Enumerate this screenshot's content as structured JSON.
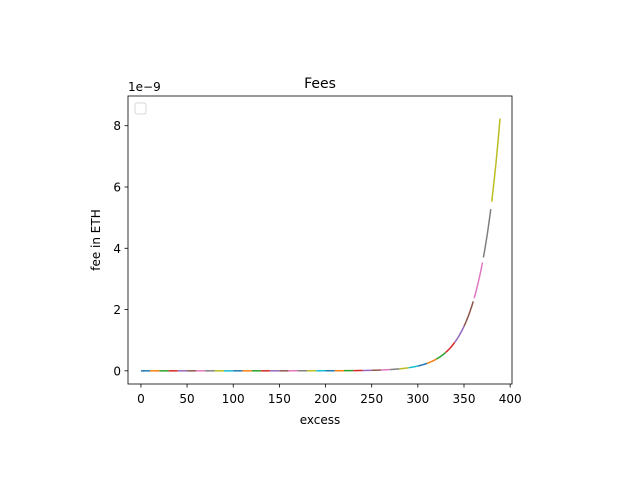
{
  "chart_data": {
    "type": "line",
    "title": "Fees",
    "xlabel": "excess",
    "ylabel": "fee in ETH",
    "y_offset_text": "1e−9",
    "xlim": [
      -14,
      402
    ],
    "ylim": [
      -0.43,
      8.97
    ],
    "x_ticks": [
      0,
      50,
      100,
      150,
      200,
      250,
      300,
      350,
      400
    ],
    "x_tick_labels": [
      "0",
      "50",
      "100",
      "150",
      "200",
      "250",
      "300",
      "350",
      "400"
    ],
    "y_ticks": [
      0,
      2,
      4,
      6,
      8
    ],
    "y_tick_labels": [
      "0",
      "2",
      "4",
      "6",
      "8"
    ],
    "grid": false,
    "legend": {
      "location": "upper-left",
      "entries": []
    },
    "curve": {
      "description_units": "y in units of 1e-9 ETH",
      "form": "y = a * exp(b * x)",
      "a": 2.5e-07,
      "b": 0.0445
    },
    "segments": [
      {
        "x_start": 0,
        "x_end": 10,
        "color": "#1f77b4"
      },
      {
        "x_start": 10,
        "x_end": 20,
        "color": "#ff7f0e"
      },
      {
        "x_start": 20,
        "x_end": 30,
        "color": "#2ca02c"
      },
      {
        "x_start": 30,
        "x_end": 40,
        "color": "#d62728"
      },
      {
        "x_start": 40,
        "x_end": 50,
        "color": "#9467bd"
      },
      {
        "x_start": 50,
        "x_end": 60,
        "color": "#8c564b"
      },
      {
        "x_start": 60,
        "x_end": 70,
        "color": "#e377c2"
      },
      {
        "x_start": 70,
        "x_end": 80,
        "color": "#7f7f7f"
      },
      {
        "x_start": 80,
        "x_end": 90,
        "color": "#bcbd22"
      },
      {
        "x_start": 90,
        "x_end": 100,
        "color": "#17becf"
      },
      {
        "x_start": 100,
        "x_end": 110,
        "color": "#1f77b4"
      },
      {
        "x_start": 110,
        "x_end": 120,
        "color": "#ff7f0e"
      },
      {
        "x_start": 120,
        "x_end": 130,
        "color": "#2ca02c"
      },
      {
        "x_start": 130,
        "x_end": 140,
        "color": "#d62728"
      },
      {
        "x_start": 140,
        "x_end": 150,
        "color": "#9467bd"
      },
      {
        "x_start": 150,
        "x_end": 160,
        "color": "#8c564b"
      },
      {
        "x_start": 160,
        "x_end": 170,
        "color": "#e377c2"
      },
      {
        "x_start": 170,
        "x_end": 180,
        "color": "#7f7f7f"
      },
      {
        "x_start": 180,
        "x_end": 190,
        "color": "#bcbd22"
      },
      {
        "x_start": 190,
        "x_end": 200,
        "color": "#17becf"
      },
      {
        "x_start": 200,
        "x_end": 210,
        "color": "#1f77b4"
      },
      {
        "x_start": 210,
        "x_end": 220,
        "color": "#ff7f0e"
      },
      {
        "x_start": 220,
        "x_end": 230,
        "color": "#2ca02c"
      },
      {
        "x_start": 230,
        "x_end": 240,
        "color": "#d62728"
      },
      {
        "x_start": 240,
        "x_end": 250,
        "color": "#9467bd"
      },
      {
        "x_start": 250,
        "x_end": 260,
        "color": "#8c564b"
      },
      {
        "x_start": 260,
        "x_end": 270,
        "color": "#e377c2"
      },
      {
        "x_start": 270,
        "x_end": 280,
        "color": "#7f7f7f"
      },
      {
        "x_start": 280,
        "x_end": 290,
        "color": "#bcbd22"
      },
      {
        "x_start": 290,
        "x_end": 300,
        "color": "#17becf"
      },
      {
        "x_start": 300,
        "x_end": 310,
        "color": "#1f77b4"
      },
      {
        "x_start": 310,
        "x_end": 320,
        "color": "#ff7f0e"
      },
      {
        "x_start": 320,
        "x_end": 330,
        "color": "#2ca02c"
      },
      {
        "x_start": 330,
        "x_end": 340,
        "color": "#d62728"
      },
      {
        "x_start": 340,
        "x_end": 350,
        "color": "#9467bd"
      },
      {
        "x_start": 350,
        "x_end": 360,
        "color": "#8c564b"
      },
      {
        "x_start": 361,
        "x_end": 370,
        "color": "#e377c2"
      },
      {
        "x_start": 371,
        "x_end": 379,
        "color": "#7f7f7f"
      },
      {
        "x_start": 380,
        "x_end": 389,
        "color": "#bcbd22"
      }
    ]
  }
}
